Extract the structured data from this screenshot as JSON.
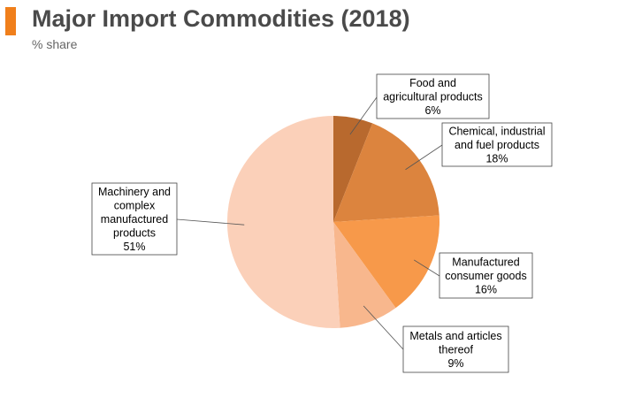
{
  "header": {
    "title": "Major Import Commodities (2018)",
    "subtitle": "% share"
  },
  "chart_data": {
    "type": "pie",
    "title": "Major Import Commodities (2018)",
    "subtitle": "% share",
    "unit": "%",
    "start_angle_deg": 0,
    "direction": "clockwise",
    "slices": [
      {
        "label": "Food and agricultural products",
        "label_lines": [
          "Food and",
          "agricultural products",
          "6%"
        ],
        "value": 6,
        "color": "#b8692e"
      },
      {
        "label": "Chemical, industrial and fuel products",
        "label_lines": [
          "Chemical, industrial",
          "and fuel products",
          "18%"
        ],
        "value": 18,
        "color": "#dc843e"
      },
      {
        "label": "Manufactured consumer goods",
        "label_lines": [
          "Manufactured",
          "consumer goods",
          "16%"
        ],
        "value": 16,
        "color": "#f7994a"
      },
      {
        "label": "Metals and articles thereof",
        "label_lines": [
          "Metals and articles",
          "thereof",
          "9%"
        ],
        "value": 9,
        "color": "#f8b78d"
      },
      {
        "label": "Machinery and complex manufactured products",
        "label_lines": [
          "Machinery and",
          "complex",
          "manufactured",
          "products",
          "51%"
        ],
        "value": 51,
        "color": "#fbd0b9"
      }
    ]
  }
}
